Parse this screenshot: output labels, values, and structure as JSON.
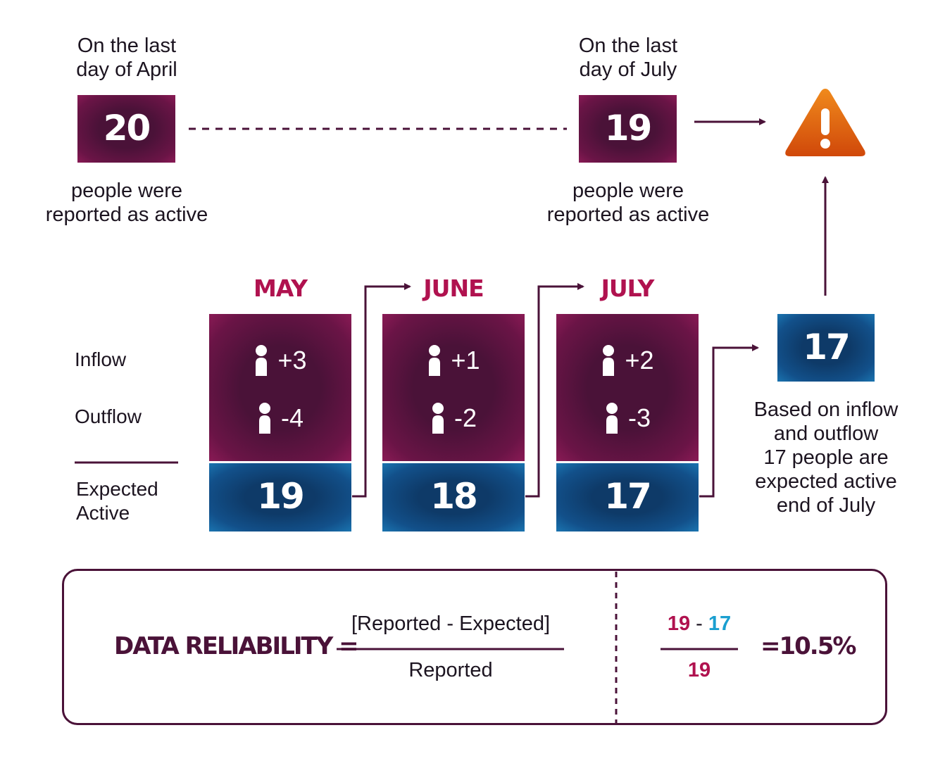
{
  "april": {
    "header_line1": "On the last",
    "header_line2": "day of April",
    "value": "20",
    "footer_line1": "people were",
    "footer_line2": "reported as active"
  },
  "july_reported": {
    "header_line1": "On the last",
    "header_line2": "day of July",
    "value": "19",
    "footer_line1": "people were",
    "footer_line2": "reported as active"
  },
  "row_labels": {
    "inflow": "Inflow",
    "outflow": "Outflow",
    "expected_line1": "Expected",
    "expected_line2": "Active"
  },
  "months": [
    {
      "name": "MAY",
      "inflow": "+3",
      "outflow": "-4",
      "expected": "19"
    },
    {
      "name": "JUNE",
      "inflow": "+1",
      "outflow": "-2",
      "expected": "18"
    },
    {
      "name": "JULY",
      "inflow": "+2",
      "outflow": "-3",
      "expected": "17"
    }
  ],
  "expected_result": {
    "value": "17",
    "caption_lines": [
      "Based on inflow",
      "and outflow",
      "17 people are",
      "expected active",
      "end of July"
    ]
  },
  "formula": {
    "label": "DATA RELIABILITY =",
    "numerator": "[Reported - Expected]",
    "denominator": "Reported",
    "example_reported": "19",
    "example_minus": "-",
    "example_expected": "17",
    "example_denominator": "19",
    "result": "=10.5%"
  },
  "colors": {
    "maroon": "#4a1238",
    "magenta": "#b0124f",
    "blue": "#0e3a68",
    "cyan": "#1a9fd0",
    "warning": "#e8600c"
  },
  "icons": {
    "person": "person-icon",
    "warning": "warning-triangle-icon"
  }
}
